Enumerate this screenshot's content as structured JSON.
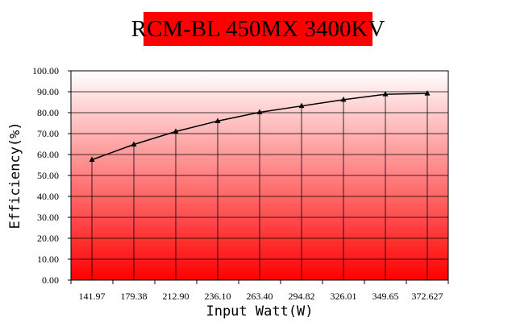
{
  "chart_data": {
    "type": "line",
    "title": "RCM-BL 450MX 3400KV",
    "xlabel": "Input Watt(W)",
    "ylabel": "Efficiency(%)",
    "categories": [
      "141.97",
      "179.38",
      "212.90",
      "236.10",
      "263.40",
      "294.82",
      "326.01",
      "349.65",
      "372.627"
    ],
    "series": [
      {
        "values": [
          57.5,
          64.8,
          71.0,
          76.0,
          80.2,
          83.2,
          86.2,
          88.8,
          89.2
        ]
      }
    ],
    "ylim": [
      0,
      100
    ],
    "yticks": [
      "0.00",
      "10.00",
      "20.00",
      "30.00",
      "40.00",
      "50.00",
      "60.00",
      "70.00",
      "80.00",
      "90.00",
      "100.00"
    ],
    "grid": true,
    "marker": "triangle",
    "colors": {
      "title_bg": "#ff0000",
      "plot_top": "#ffffff",
      "plot_bottom": "#ff0000",
      "line": "#000000"
    }
  }
}
